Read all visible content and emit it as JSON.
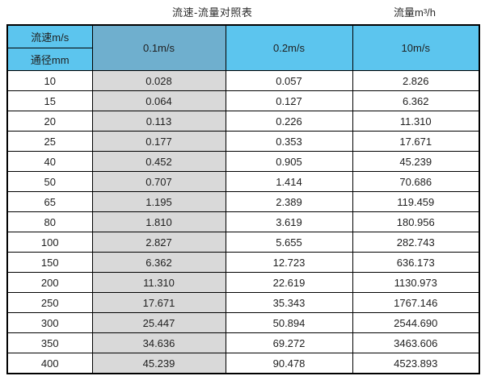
{
  "page": {
    "title": "流速-流量对照表",
    "unit_label": "流量m³/h"
  },
  "table": {
    "corner": {
      "top": "流速m/s",
      "bottom": "通径mm"
    },
    "velocity_headers": [
      "0.1m/s",
      "0.2m/s",
      "10m/s"
    ],
    "rows": [
      {
        "diameter": "10",
        "values": [
          "0.028",
          "0.057",
          "2.826"
        ]
      },
      {
        "diameter": "15",
        "values": [
          "0.064",
          "0.127",
          "6.362"
        ]
      },
      {
        "diameter": "20",
        "values": [
          "0.113",
          "0.226",
          "11.310"
        ]
      },
      {
        "diameter": "25",
        "values": [
          "0.177",
          "0.353",
          "17.671"
        ]
      },
      {
        "diameter": "40",
        "values": [
          "0.452",
          "0.905",
          "45.239"
        ]
      },
      {
        "diameter": "50",
        "values": [
          "0.707",
          "1.414",
          "70.686"
        ]
      },
      {
        "diameter": "65",
        "values": [
          "1.195",
          "2.389",
          "119.459"
        ]
      },
      {
        "diameter": "80",
        "values": [
          "1.810",
          "3.619",
          "180.956"
        ]
      },
      {
        "diameter": "100",
        "values": [
          "2.827",
          "5.655",
          "282.743"
        ]
      },
      {
        "diameter": "150",
        "values": [
          "6.362",
          "12.723",
          "636.173"
        ]
      },
      {
        "diameter": "200",
        "values": [
          "11.310",
          "22.619",
          "1130.973"
        ]
      },
      {
        "diameter": "250",
        "values": [
          "17.671",
          "35.343",
          "1767.146"
        ]
      },
      {
        "diameter": "300",
        "values": [
          "25.447",
          "50.894",
          "2544.690"
        ]
      },
      {
        "diameter": "350",
        "values": [
          "34.636",
          "69.272",
          "3463.606"
        ]
      },
      {
        "diameter": "400",
        "values": [
          "45.239",
          "90.478",
          "4523.893"
        ]
      }
    ]
  },
  "colors": {
    "header_blue": "#5cc5ee",
    "header_blue_dark": "#6fafce",
    "column_gray": "#d9d9d9",
    "border": "#000000"
  },
  "chart_data": {
    "type": "table",
    "title": "流速-流量对照表",
    "unit": "流量m³/h",
    "columns": [
      "通径mm",
      "0.1m/s",
      "0.2m/s",
      "10m/s"
    ],
    "rows": [
      [
        10,
        0.028,
        0.057,
        2.826
      ],
      [
        15,
        0.064,
        0.127,
        6.362
      ],
      [
        20,
        0.113,
        0.226,
        11.31
      ],
      [
        25,
        0.177,
        0.353,
        17.671
      ],
      [
        40,
        0.452,
        0.905,
        45.239
      ],
      [
        50,
        0.707,
        1.414,
        70.686
      ],
      [
        65,
        1.195,
        2.389,
        119.459
      ],
      [
        80,
        1.81,
        3.619,
        180.956
      ],
      [
        100,
        2.827,
        5.655,
        282.743
      ],
      [
        150,
        6.362,
        12.723,
        636.173
      ],
      [
        200,
        11.31,
        22.619,
        1130.973
      ],
      [
        250,
        17.671,
        35.343,
        1767.146
      ],
      [
        300,
        25.447,
        50.894,
        2544.69
      ],
      [
        350,
        34.636,
        69.272,
        3463.606
      ],
      [
        400,
        45.239,
        90.478,
        4523.893
      ]
    ]
  }
}
